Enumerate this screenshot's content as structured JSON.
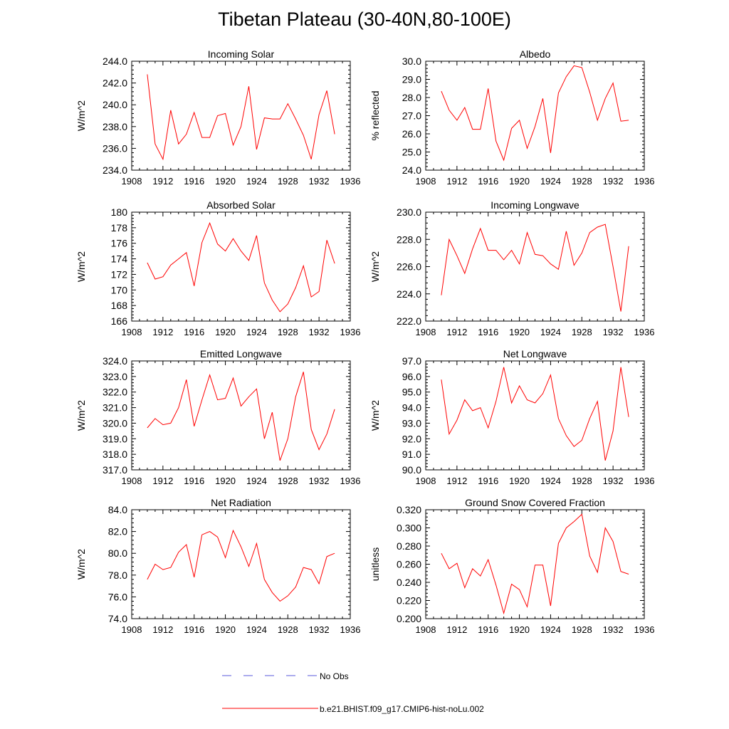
{
  "figure": {
    "title": "Tibetan Plateau (30-40N,80-100E)",
    "line_color": "#ff0000",
    "obs_color": "#5a5adc"
  },
  "legend": {
    "placement": "bottom-center",
    "entries": [
      {
        "label": "No Obs",
        "style": "dashed",
        "color": "#5a5adc"
      },
      {
        "label": "b.e21.BHIST.f09_g17.CMIP6-hist-noLu.002",
        "style": "solid",
        "color": "#ff0000"
      }
    ]
  },
  "chart_data": [
    {
      "type": "line",
      "title": "Incoming Solar",
      "ylabel": "W/m^2",
      "xlim": [
        1908,
        1936
      ],
      "ylim": [
        234.0,
        244.0
      ],
      "xticks": [
        "1908",
        "1912",
        "1916",
        "1920",
        "1924",
        "1928",
        "1932",
        "1936"
      ],
      "yticks": [
        "234.0",
        "236.0",
        "238.0",
        "240.0",
        "242.0",
        "244.0"
      ],
      "x": [
        1910,
        1911,
        1912,
        1913,
        1914,
        1915,
        1916,
        1917,
        1918,
        1919,
        1920,
        1921,
        1922,
        1923,
        1924,
        1925,
        1926,
        1927,
        1928,
        1929,
        1930,
        1931,
        1932,
        1933,
        1934
      ],
      "series": [
        {
          "values": [
            242.8,
            236.4,
            235.0,
            239.5,
            236.4,
            237.3,
            239.3,
            237.0,
            237.0,
            239.0,
            239.2,
            236.3,
            238.0,
            241.7,
            235.9,
            238.8,
            238.7,
            238.7,
            240.1,
            238.7,
            237.2,
            235.0,
            239.1,
            241.3,
            237.3
          ]
        }
      ]
    },
    {
      "type": "line",
      "title": "Albedo",
      "ylabel": "% reflected",
      "xlim": [
        1908,
        1936
      ],
      "ylim": [
        24.0,
        30.0
      ],
      "xticks": [
        "1908",
        "1912",
        "1916",
        "1920",
        "1924",
        "1928",
        "1932",
        "1936"
      ],
      "yticks": [
        "24.0",
        "25.0",
        "26.0",
        "27.0",
        "28.0",
        "29.0",
        "30.0"
      ],
      "x": [
        1910,
        1911,
        1912,
        1913,
        1914,
        1915,
        1916,
        1917,
        1918,
        1919,
        1920,
        1921,
        1922,
        1923,
        1924,
        1925,
        1926,
        1927,
        1928,
        1929,
        1930,
        1931,
        1932,
        1933,
        1934
      ],
      "series": [
        {
          "values": [
            28.35,
            27.3,
            26.75,
            27.45,
            26.25,
            26.25,
            28.5,
            25.6,
            24.55,
            26.3,
            26.75,
            25.2,
            26.4,
            27.95,
            24.95,
            28.25,
            29.15,
            29.75,
            29.65,
            28.3,
            26.75,
            27.95,
            28.8,
            26.7,
            26.75
          ]
        }
      ]
    },
    {
      "type": "line",
      "title": "Absorbed Solar",
      "ylabel": "W/m^2",
      "xlim": [
        1908,
        1936
      ],
      "ylim": [
        166,
        180
      ],
      "xticks": [
        "1908",
        "1912",
        "1916",
        "1920",
        "1924",
        "1928",
        "1932",
        "1936"
      ],
      "yticks": [
        "166",
        "168",
        "170",
        "172",
        "174",
        "176",
        "178",
        "180"
      ],
      "x": [
        1910,
        1911,
        1912,
        1913,
        1914,
        1915,
        1916,
        1917,
        1918,
        1919,
        1920,
        1921,
        1922,
        1923,
        1924,
        1925,
        1926,
        1927,
        1928,
        1929,
        1930,
        1931,
        1932,
        1933,
        1934
      ],
      "series": [
        {
          "values": [
            173.5,
            171.4,
            171.7,
            173.2,
            174.0,
            174.8,
            170.5,
            176.1,
            178.6,
            175.9,
            175.0,
            176.6,
            175.0,
            173.8,
            177.0,
            170.9,
            168.7,
            167.2,
            168.2,
            170.3,
            173.1,
            169.1,
            169.8,
            176.4,
            173.4
          ]
        }
      ]
    },
    {
      "type": "line",
      "title": "Incoming Longwave",
      "ylabel": "W/m^2",
      "xlim": [
        1908,
        1936
      ],
      "ylim": [
        222.0,
        230.0
      ],
      "xticks": [
        "1908",
        "1912",
        "1916",
        "1920",
        "1924",
        "1928",
        "1932",
        "1936"
      ],
      "yticks": [
        "222.0",
        "224.0",
        "226.0",
        "228.0",
        "230.0"
      ],
      "x": [
        1910,
        1911,
        1912,
        1913,
        1914,
        1915,
        1916,
        1917,
        1918,
        1919,
        1920,
        1921,
        1922,
        1923,
        1924,
        1925,
        1926,
        1927,
        1928,
        1929,
        1930,
        1931,
        1932,
        1933,
        1934
      ],
      "series": [
        {
          "values": [
            223.9,
            228.0,
            226.8,
            225.5,
            227.3,
            228.8,
            227.2,
            227.2,
            226.5,
            227.2,
            226.2,
            228.5,
            226.9,
            226.8,
            226.2,
            225.8,
            228.6,
            226.1,
            227.0,
            228.5,
            228.9,
            229.1,
            226.0,
            222.7,
            227.5
          ]
        }
      ]
    },
    {
      "type": "line",
      "title": "Emitted Longwave",
      "ylabel": "W/m^2",
      "xlim": [
        1908,
        1936
      ],
      "ylim": [
        317.0,
        324.0
      ],
      "xticks": [
        "1908",
        "1912",
        "1916",
        "1920",
        "1924",
        "1928",
        "1932",
        "1936"
      ],
      "yticks": [
        "317.0",
        "318.0",
        "319.0",
        "320.0",
        "321.0",
        "322.0",
        "323.0",
        "324.0"
      ],
      "x": [
        1910,
        1911,
        1912,
        1913,
        1914,
        1915,
        1916,
        1917,
        1918,
        1919,
        1920,
        1921,
        1922,
        1923,
        1924,
        1925,
        1926,
        1927,
        1928,
        1929,
        1930,
        1931,
        1932,
        1933,
        1934
      ],
      "series": [
        {
          "values": [
            319.7,
            320.3,
            319.9,
            320.0,
            321.0,
            322.8,
            319.8,
            321.5,
            323.1,
            321.5,
            321.6,
            322.9,
            321.1,
            321.7,
            322.2,
            319.0,
            320.7,
            317.6,
            319.0,
            321.7,
            323.3,
            319.6,
            318.3,
            319.3,
            320.9
          ]
        }
      ]
    },
    {
      "type": "line",
      "title": "Net Longwave",
      "ylabel": "W/m^2",
      "xlim": [
        1908,
        1936
      ],
      "ylim": [
        90.0,
        97.0
      ],
      "xticks": [
        "1908",
        "1912",
        "1916",
        "1920",
        "1924",
        "1928",
        "1932",
        "1936"
      ],
      "yticks": [
        "90.0",
        "91.0",
        "92.0",
        "93.0",
        "94.0",
        "95.0",
        "96.0",
        "97.0"
      ],
      "x": [
        1910,
        1911,
        1912,
        1913,
        1914,
        1915,
        1916,
        1917,
        1918,
        1919,
        1920,
        1921,
        1922,
        1923,
        1924,
        1925,
        1926,
        1927,
        1928,
        1929,
        1930,
        1931,
        1932,
        1933,
        1934
      ],
      "series": [
        {
          "values": [
            95.8,
            92.3,
            93.2,
            94.5,
            93.8,
            94.0,
            92.7,
            94.4,
            96.6,
            94.3,
            95.4,
            94.5,
            94.3,
            94.9,
            96.1,
            93.3,
            92.2,
            91.5,
            91.9,
            93.3,
            94.4,
            90.6,
            92.5,
            96.6,
            93.4
          ]
        }
      ]
    },
    {
      "type": "line",
      "title": "Net Radiation",
      "ylabel": "W/m^2",
      "xlim": [
        1908,
        1936
      ],
      "ylim": [
        74.0,
        84.0
      ],
      "xticks": [
        "1908",
        "1912",
        "1916",
        "1920",
        "1924",
        "1928",
        "1932",
        "1936"
      ],
      "yticks": [
        "74.0",
        "76.0",
        "78.0",
        "80.0",
        "82.0",
        "84.0"
      ],
      "x": [
        1910,
        1911,
        1912,
        1913,
        1914,
        1915,
        1916,
        1917,
        1918,
        1919,
        1920,
        1921,
        1922,
        1923,
        1924,
        1925,
        1926,
        1927,
        1928,
        1929,
        1930,
        1931,
        1932,
        1933,
        1934
      ],
      "series": [
        {
          "values": [
            77.6,
            79.0,
            78.5,
            78.7,
            80.1,
            80.8,
            77.8,
            81.7,
            82.0,
            81.5,
            79.6,
            82.1,
            80.6,
            78.8,
            80.9,
            77.6,
            76.4,
            75.6,
            76.1,
            76.9,
            78.7,
            78.5,
            77.2,
            79.7,
            80.0
          ]
        }
      ]
    },
    {
      "type": "line",
      "title": "Ground Snow Covered Fraction",
      "ylabel": "unitless",
      "xlim": [
        1908,
        1936
      ],
      "ylim": [
        0.2,
        0.32
      ],
      "xticks": [
        "1908",
        "1912",
        "1916",
        "1920",
        "1924",
        "1928",
        "1932",
        "1936"
      ],
      "yticks": [
        "0.200",
        "0.220",
        "0.240",
        "0.260",
        "0.280",
        "0.300",
        "0.320"
      ],
      "x": [
        1910,
        1911,
        1912,
        1913,
        1914,
        1915,
        1916,
        1917,
        1918,
        1919,
        1920,
        1921,
        1922,
        1923,
        1924,
        1925,
        1926,
        1927,
        1928,
        1929,
        1930,
        1931,
        1932,
        1933,
        1934
      ],
      "series": [
        {
          "values": [
            0.272,
            0.255,
            0.261,
            0.234,
            0.255,
            0.247,
            0.265,
            0.237,
            0.206,
            0.238,
            0.232,
            0.213,
            0.259,
            0.259,
            0.214,
            0.283,
            0.3,
            0.307,
            0.315,
            0.269,
            0.251,
            0.3,
            0.285,
            0.252,
            0.249
          ]
        }
      ]
    }
  ]
}
